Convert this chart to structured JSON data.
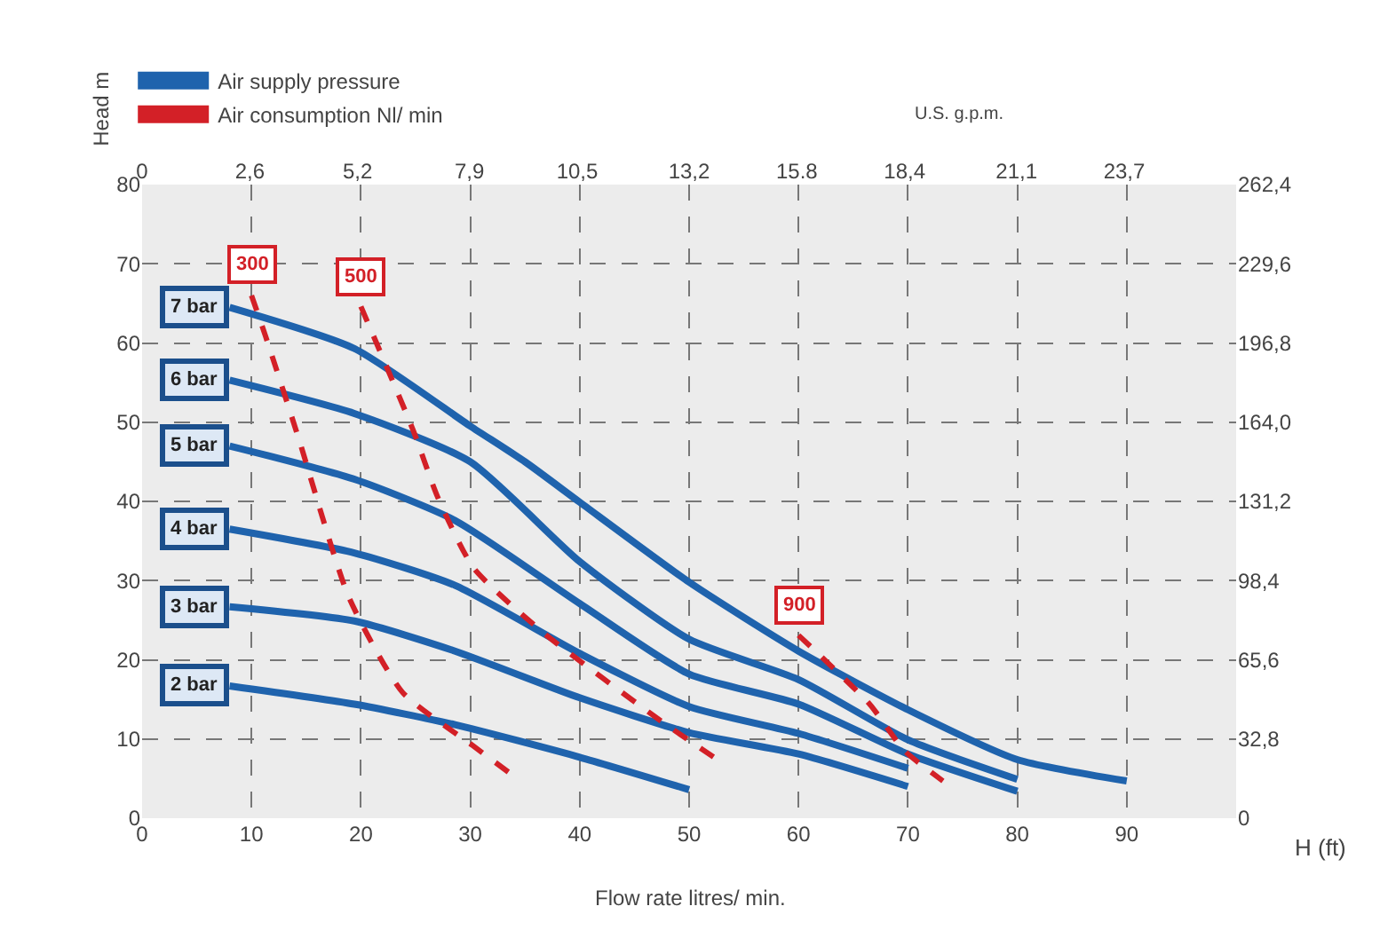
{
  "chart_data": {
    "type": "line",
    "xlabel": "Flow rate litres/ min.",
    "ylabel": "Head m",
    "x2label": "U.S. g.p.m.",
    "y2label": "H (ft)",
    "annotations": [
      "Air supply pressure",
      "Air consumption Nl/ min"
    ],
    "xlim": [
      0,
      100
    ],
    "xticks": [
      0,
      10,
      20,
      30,
      40,
      50,
      60,
      70,
      80,
      90
    ],
    "ylim": [
      0,
      80
    ],
    "yticks": [
      0,
      10,
      20,
      30,
      40,
      50,
      60,
      70,
      80
    ],
    "x2lim": [
      0,
      26.4
    ],
    "x2ticks": [
      0,
      {
        "value": 2.6,
        "label": "2,6"
      },
      {
        "value": 5.2,
        "label": "5,2"
      },
      {
        "value": 7.9,
        "label": "7,9"
      },
      {
        "value": 10.5,
        "label": "10,5"
      },
      {
        "value": 13.2,
        "label": "13,2"
      },
      15.8,
      {
        "value": 18.4,
        "label": "18,4"
      },
      {
        "value": 21.1,
        "label": "21,1"
      },
      {
        "value": 23.7,
        "label": "23,7"
      }
    ],
    "y2lim": [
      0,
      262.4
    ],
    "y2ticks": [
      0,
      {
        "value": 32.8,
        "label": "32,8"
      },
      {
        "value": 65.6,
        "label": "65,6"
      },
      {
        "value": 98.4,
        "label": "98,4"
      },
      {
        "value": 131.2,
        "label": "131,2"
      },
      {
        "value": 164.0,
        "label": "164,0"
      },
      {
        "value": 196.8,
        "label": "196,8"
      },
      {
        "value": 229.6,
        "label": "229,6"
      },
      {
        "value": 262.4,
        "label": "262,4"
      }
    ],
    "grid": true,
    "marker": "none",
    "legend": "top left",
    "series": [
      {
        "name": "7 bar",
        "color": "#1f63ad",
        "line_style": "solid",
        "x": [
          8,
          19.4,
          30,
          35,
          40,
          50,
          60,
          70,
          80,
          90
        ],
        "values": [
          64.5,
          59.3,
          49.5,
          45,
          39.9,
          29.8,
          21.1,
          13.7,
          7.4,
          4.7
        ]
      },
      {
        "name": "6 bar",
        "color": "#1f63ad",
        "line_style": "solid",
        "x": [
          8,
          19.4,
          30,
          40,
          50,
          60,
          70,
          80
        ],
        "values": [
          55.3,
          51.1,
          45,
          32.4,
          22.6,
          17.5,
          9.9,
          4.9
        ]
      },
      {
        "name": "5 bar",
        "color": "#1f63ad",
        "line_style": "solid",
        "x": [
          8,
          19.4,
          28.6,
          40,
          50,
          60,
          70,
          80
        ],
        "values": [
          47,
          42.8,
          37.6,
          27.1,
          18.2,
          14.4,
          8.1,
          3.4
        ]
      },
      {
        "name": "4 bar",
        "color": "#1f63ad",
        "line_style": "solid",
        "x": [
          8,
          19.4,
          28.6,
          40,
          50,
          60,
          70
        ],
        "values": [
          36.5,
          33.5,
          29.4,
          20.8,
          14.1,
          10.7,
          6.3
        ]
      },
      {
        "name": "3 bar",
        "color": "#1f63ad",
        "line_style": "solid",
        "x": [
          8,
          19.4,
          28.6,
          40,
          50,
          60,
          70
        ],
        "values": [
          26.7,
          24.9,
          21.1,
          15.2,
          10.8,
          8.1,
          4.0
        ]
      },
      {
        "name": "2 bar",
        "color": "#1f63ad",
        "line_style": "solid",
        "x": [
          8,
          19.4,
          28.6,
          40,
          50
        ],
        "values": [
          16.7,
          14.4,
          11.8,
          7.7,
          3.6
        ]
      },
      {
        "name": "300",
        "color": "#d32027",
        "line_style": "dashed",
        "x": [
          10,
          11.3,
          14.3,
          18.9,
          23.8,
          30.2,
          33.5
        ],
        "values": [
          66,
          60.8,
          48,
          27.9,
          15.9,
          9.2,
          5.8
        ]
      },
      {
        "name": "500",
        "color": "#d32027",
        "line_style": "dashed",
        "x": [
          20,
          24.8,
          27,
          30.3,
          36.7,
          47.5,
          53
        ],
        "values": [
          64.6,
          48.9,
          40.6,
          31.6,
          23.4,
          12.2,
          7
        ]
      },
      {
        "name": "900",
        "color": "#d32027",
        "line_style": "dashed",
        "x": [
          60,
          66.5,
          69.7,
          73.2
        ],
        "values": [
          23.1,
          14.4,
          8.5,
          4.7
        ]
      }
    ]
  }
}
